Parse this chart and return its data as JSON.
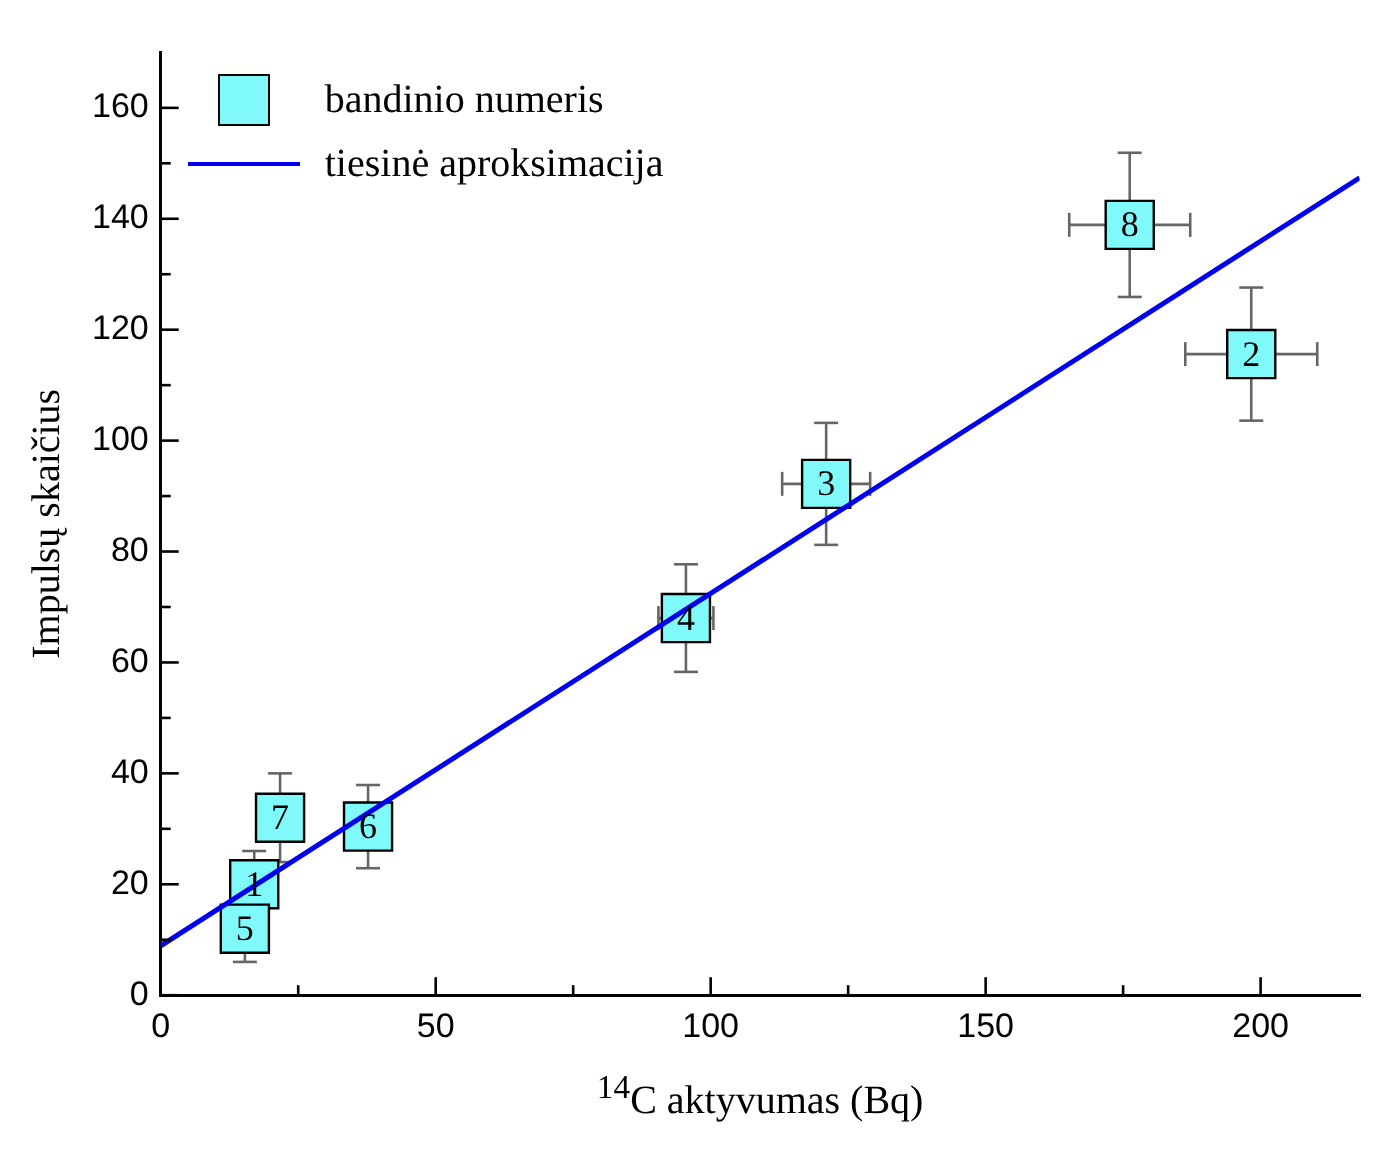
{
  "chart_data": {
    "type": "scatter",
    "xlabel": "$^{14}$C aktyvumas (Bq)",
    "ylabel": "Impulsų skaičius",
    "legend": "top left",
    "xlim": [
      0,
      218
    ],
    "ylim": [
      0,
      170
    ],
    "xticks": [
      0,
      {
        "value": 25,
        "label": null
      },
      50,
      {
        "value": 75,
        "label": null
      },
      100,
      {
        "value": 125,
        "label": null
      },
      150,
      {
        "value": 175,
        "label": null
      },
      200
    ],
    "yticks": [
      0,
      {
        "value": 10,
        "label": null
      },
      20,
      {
        "value": 30,
        "label": null
      },
      40,
      {
        "value": 50,
        "label": null
      },
      60,
      {
        "value": 70,
        "label": null
      },
      80,
      {
        "value": 90,
        "label": null
      },
      100,
      {
        "value": 110,
        "label": null
      },
      120,
      {
        "value": 130,
        "label": null
      },
      140,
      {
        "value": 150,
        "label": null
      },
      160
    ],
    "series": [
      {
        "name": "bandinio numeris",
        "marker": "square",
        "color": "#7ff9f9",
        "x": [
          17,
          198.3,
          121,
          95.5,
          15.3,
          37.7,
          21.7,
          176.2
        ],
        "values": [
          20,
          115.6,
          92.2,
          68,
          12,
          30.4,
          32,
          138.9
        ],
        "errors": [
          6,
          12,
          11,
          9.7,
          6,
          7.5,
          8,
          13
        ],
        "xerrors": [
          null,
          12,
          8,
          5,
          null,
          null,
          null,
          11
        ]
      },
      {
        "name": "tiesinė aproksimacija",
        "type": "line",
        "color": "#0000ee",
        "x": [
          0,
          218
        ],
        "values": [
          8.9,
          147.4
        ],
        "line_style": "solid"
      }
    ],
    "annotations": [
      {
        "text": "1",
        "x": 17,
        "y": 20
      },
      {
        "text": "2",
        "x": 198.3,
        "y": 115.6
      },
      {
        "text": "3",
        "x": 121,
        "y": 92.2
      },
      {
        "text": "4",
        "x": 95.5,
        "y": 68
      },
      {
        "text": "5",
        "x": 15.3,
        "y": 12
      },
      {
        "text": "6",
        "x": 37.7,
        "y": 30.4
      },
      {
        "text": "7",
        "x": 21.7,
        "y": 32
      },
      {
        "text": "8",
        "x": 176.2,
        "y": 138.9
      }
    ]
  }
}
